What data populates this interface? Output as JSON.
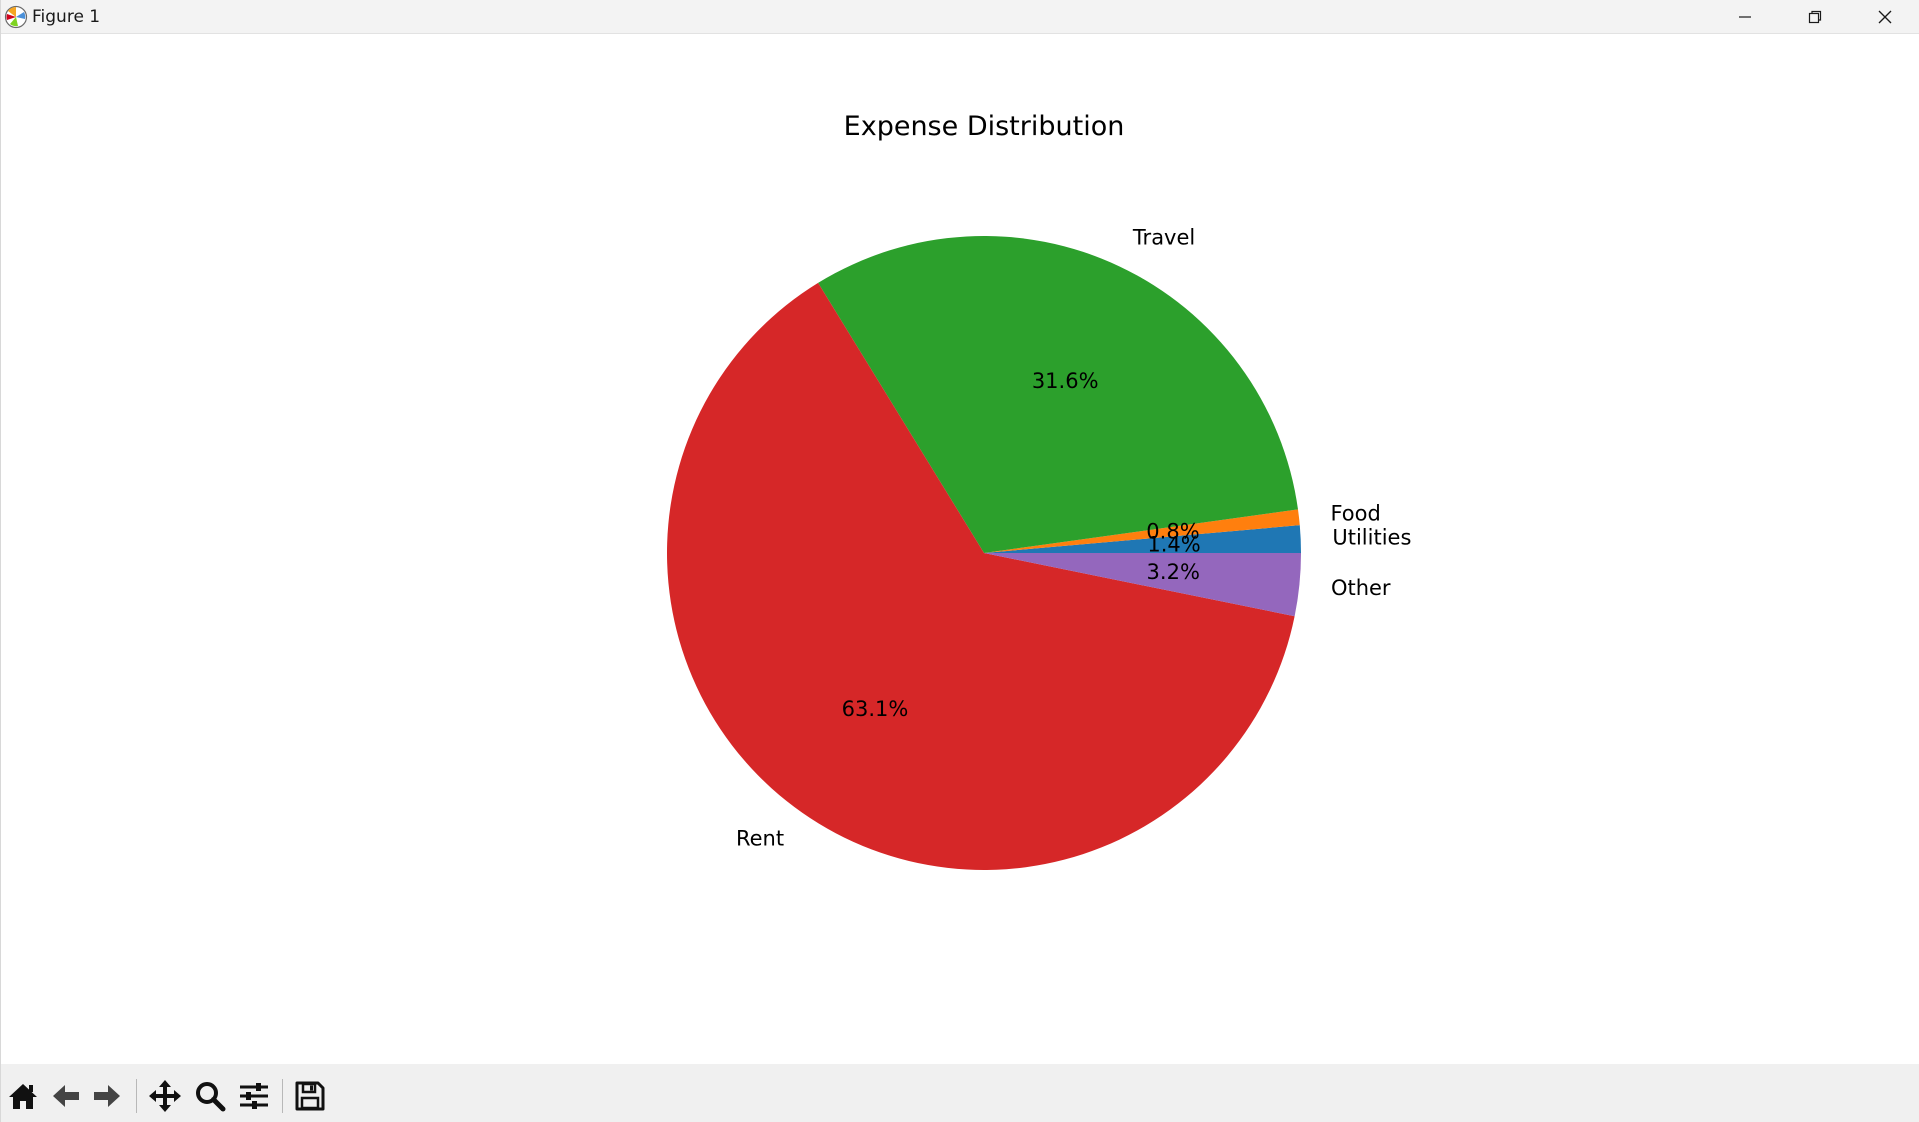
{
  "window": {
    "title": "Figure 1"
  },
  "toolbar": {
    "tools": [
      "home-icon",
      "back-icon",
      "forward-icon",
      "pan-icon",
      "zoom-icon",
      "configure-subplots-icon",
      "save-icon"
    ]
  },
  "chart_data": {
    "type": "pie",
    "title": "Expense Distribution",
    "start_angle": 0,
    "direction": "counterclockwise",
    "slices": [
      {
        "label": "Utilities",
        "value": 1.4,
        "pct_label": "1.4%",
        "color": "#1f77b4"
      },
      {
        "label": "Food",
        "value": 0.8,
        "pct_label": "0.8%",
        "color": "#ff7f0e"
      },
      {
        "label": "Travel",
        "value": 31.6,
        "pct_label": "31.6%",
        "color": "#2ca02c"
      },
      {
        "label": "Rent",
        "value": 63.1,
        "pct_label": "63.1%",
        "color": "#d62728"
      },
      {
        "label": "Other",
        "value": 3.2,
        "pct_label": "3.2%",
        "color": "#9467bd"
      }
    ]
  }
}
